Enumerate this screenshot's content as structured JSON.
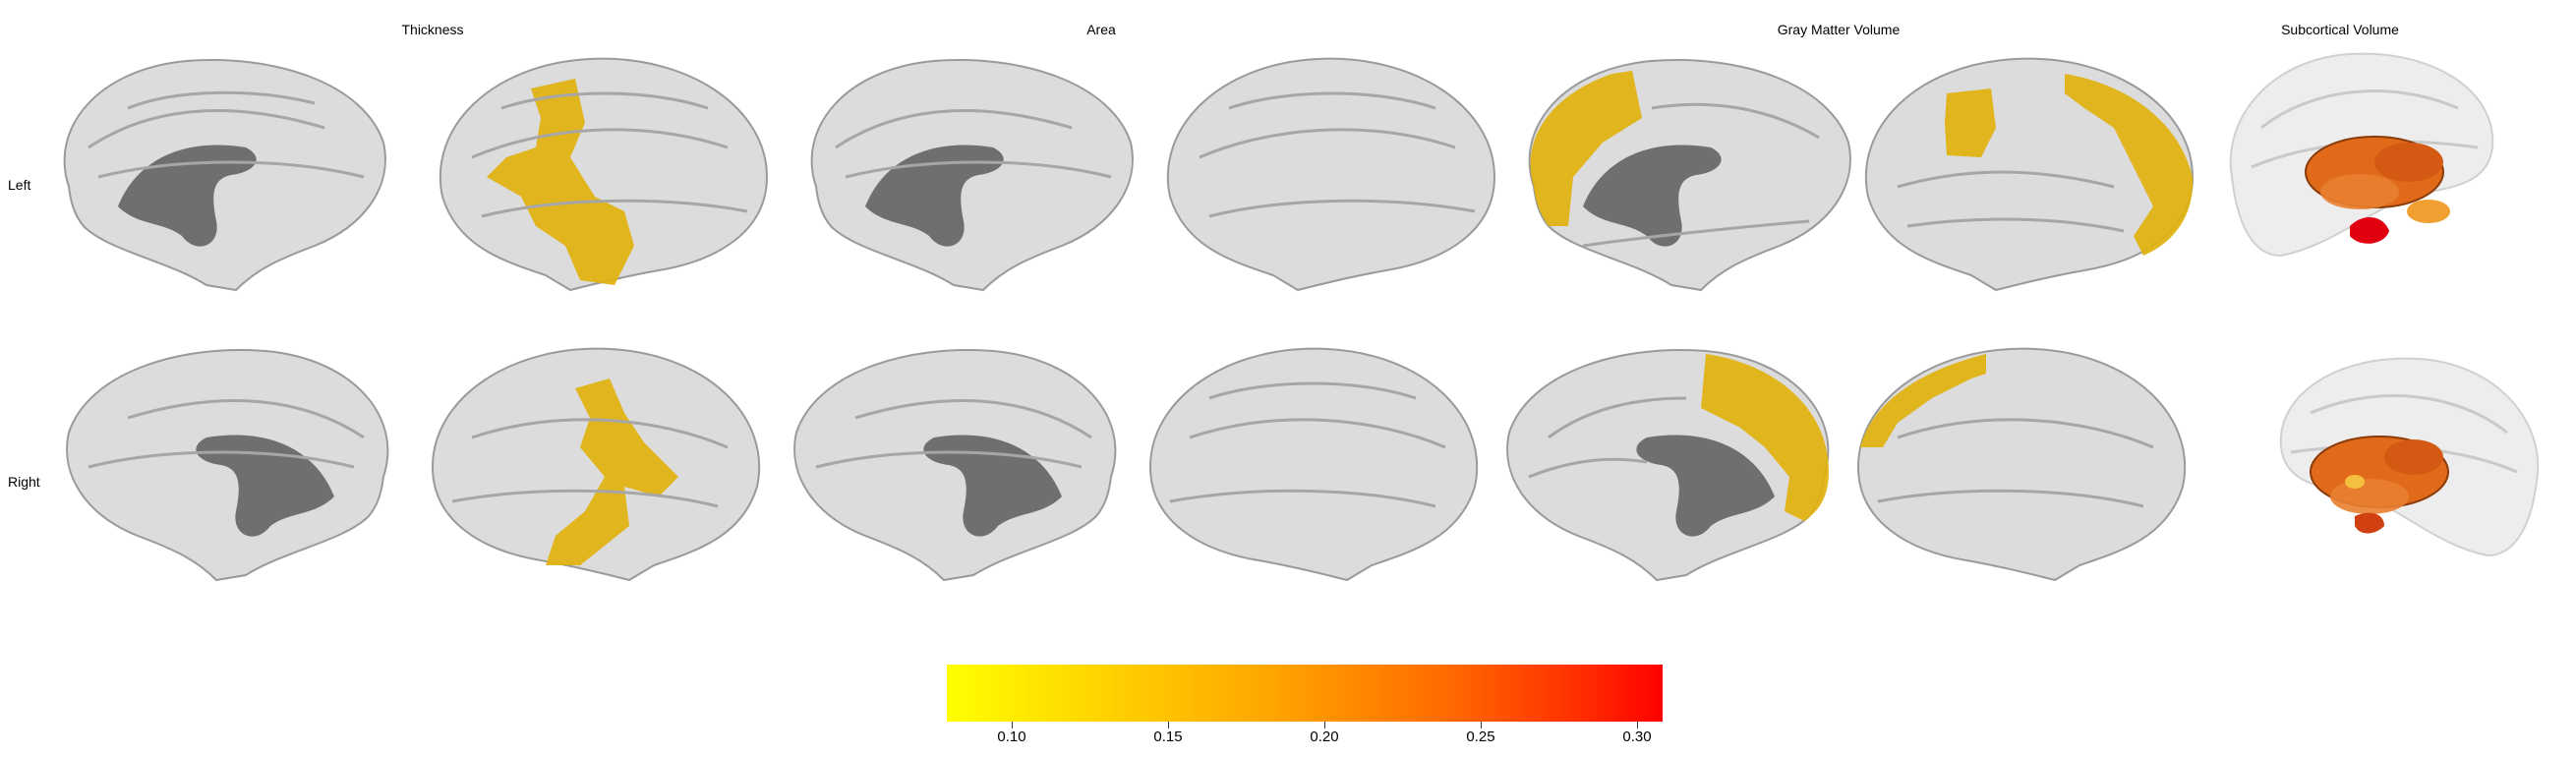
{
  "columns": {
    "thickness": "Thickness",
    "area": "Area",
    "gray_matter_volume": "Gray Matter Volume",
    "subcortical_volume": "Subcortical Volume"
  },
  "rows": {
    "left": "Left",
    "right": "Right"
  },
  "colorbar": {
    "ticks": [
      "0.10",
      "0.15",
      "0.20",
      "0.25",
      "0.30"
    ],
    "colors": [
      "#ffff00",
      "#ffd300",
      "#ffa600",
      "#ff6a00",
      "#ff0000"
    ]
  },
  "colors": {
    "cortex": "#dcdcdc",
    "medial_wall": "#6f6f6f",
    "highlight_low": "#e0b10d",
    "subcortical": "#e06a1a",
    "subcortical_high": "#e00010"
  }
}
